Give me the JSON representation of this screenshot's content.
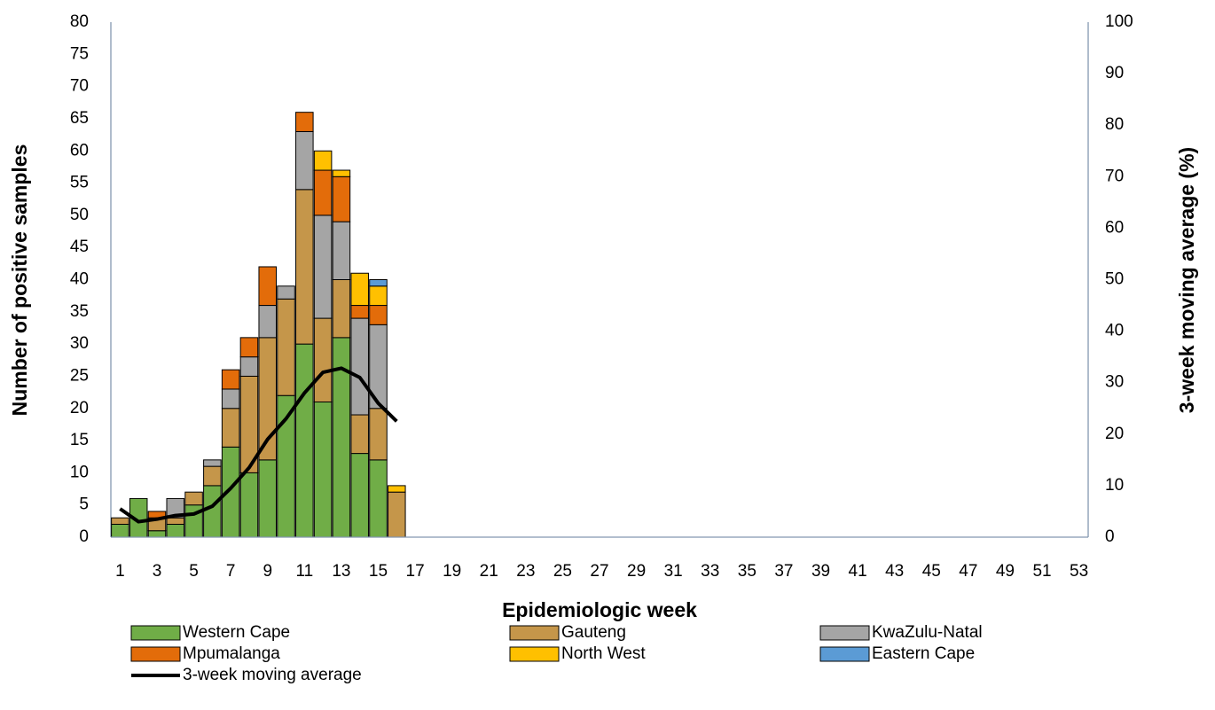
{
  "chart_data": {
    "type": "bar",
    "stacked": true,
    "x_label": "Epidemiologic week",
    "y_label": "Number of positive samples",
    "y2_label": "3-week moving average (%)",
    "categories": [
      1,
      null,
      3,
      null,
      5,
      null,
      7,
      null,
      9,
      null,
      11,
      null,
      13,
      null,
      15,
      null,
      17,
      null,
      19,
      null,
      21,
      null,
      23,
      null,
      25,
      null,
      27,
      null,
      29,
      null,
      31,
      null,
      33,
      null,
      35,
      null,
      37,
      null,
      39,
      null,
      41,
      null,
      43,
      null,
      45,
      null,
      47,
      null,
      49,
      null,
      51,
      null,
      53
    ],
    "ylim": [
      0,
      80
    ],
    "yticks": [
      0,
      5,
      10,
      15,
      20,
      25,
      30,
      35,
      40,
      45,
      50,
      55,
      60,
      65,
      70,
      75,
      80
    ],
    "y2lim": [
      0,
      100
    ],
    "y2ticks": [
      0,
      10,
      20,
      30,
      40,
      50,
      60,
      70,
      80,
      90,
      100
    ],
    "legend": "bottom",
    "grid": false,
    "series": [
      {
        "name": "Western Cape",
        "color": "#70ad47",
        "values": [
          2,
          6,
          1,
          2,
          5,
          8,
          14,
          10,
          12,
          22,
          30,
          21,
          31,
          13,
          12,
          0,
          null,
          null,
          null,
          null,
          null,
          null,
          null,
          null,
          null,
          null,
          null,
          null,
          null,
          null,
          null,
          null,
          null,
          null,
          null,
          null,
          null,
          null,
          null,
          null,
          null,
          null,
          null,
          null,
          null,
          null,
          null,
          null,
          null,
          null,
          null,
          null,
          null
        ]
      },
      {
        "name": "Gauteng",
        "color": "#c5964a",
        "values": [
          1,
          0,
          2,
          1,
          2,
          3,
          6,
          15,
          19,
          15,
          24,
          13,
          9,
          6,
          8,
          7,
          null,
          null,
          null,
          null,
          null,
          null,
          null,
          null,
          null,
          null,
          null,
          null,
          null,
          null,
          null,
          null,
          null,
          null,
          null,
          null,
          null,
          null,
          null,
          null,
          null,
          null,
          null,
          null,
          null,
          null,
          null,
          null,
          null,
          null,
          null,
          null,
          null
        ]
      },
      {
        "name": "KwaZulu-Natal",
        "color": "#a5a5a5",
        "values": [
          0,
          0,
          0,
          3,
          0,
          1,
          3,
          3,
          5,
          2,
          9,
          16,
          9,
          15,
          13,
          0,
          null,
          null,
          null,
          null,
          null,
          null,
          null,
          null,
          null,
          null,
          null,
          null,
          null,
          null,
          null,
          null,
          null,
          null,
          null,
          null,
          null,
          null,
          null,
          null,
          null,
          null,
          null,
          null,
          null,
          null,
          null,
          null,
          null,
          null,
          null,
          null,
          null
        ]
      },
      {
        "name": "Mpumalanga",
        "color": "#e36c0a",
        "values": [
          0,
          0,
          1,
          0,
          0,
          0,
          3,
          3,
          6,
          0,
          3,
          7,
          7,
          2,
          3,
          0,
          null,
          null,
          null,
          null,
          null,
          null,
          null,
          null,
          null,
          null,
          null,
          null,
          null,
          null,
          null,
          null,
          null,
          null,
          null,
          null,
          null,
          null,
          null,
          null,
          null,
          null,
          null,
          null,
          null,
          null,
          null,
          null,
          null,
          null,
          null,
          null,
          null
        ]
      },
      {
        "name": "North West",
        "color": "#ffc000",
        "values": [
          0,
          0,
          0,
          0,
          0,
          0,
          0,
          0,
          0,
          0,
          0,
          3,
          1,
          5,
          3,
          1,
          null,
          null,
          null,
          null,
          null,
          null,
          null,
          null,
          null,
          null,
          null,
          null,
          null,
          null,
          null,
          null,
          null,
          null,
          null,
          null,
          null,
          null,
          null,
          null,
          null,
          null,
          null,
          null,
          null,
          null,
          null,
          null,
          null,
          null,
          null,
          null,
          null
        ]
      },
      {
        "name": "Eastern Cape",
        "color": "#5b9bd5",
        "values": [
          0,
          0,
          0,
          0,
          0,
          0,
          0,
          0,
          0,
          0,
          0,
          0,
          0,
          0,
          1,
          0,
          null,
          null,
          null,
          null,
          null,
          null,
          null,
          null,
          null,
          null,
          null,
          null,
          null,
          null,
          null,
          null,
          null,
          null,
          null,
          null,
          null,
          null,
          null,
          null,
          null,
          null,
          null,
          null,
          null,
          null,
          null,
          null,
          null,
          null,
          null,
          null,
          null
        ]
      },
      {
        "name": "3-week moving average",
        "type": "line",
        "axis": "y2",
        "color": "#000000",
        "values": [
          5.5,
          3,
          3.5,
          4.2,
          4.5,
          6,
          9.5,
          13.5,
          19,
          23,
          28,
          32,
          32.8,
          31,
          26,
          22.5,
          null,
          null,
          null,
          null,
          null,
          null,
          null,
          null,
          null,
          null,
          null,
          null,
          null,
          null,
          null,
          null,
          null,
          null,
          null,
          null,
          null,
          null,
          null,
          null,
          null,
          null,
          null,
          null,
          null,
          null,
          null,
          null,
          null,
          null,
          null,
          null,
          null
        ]
      }
    ]
  }
}
